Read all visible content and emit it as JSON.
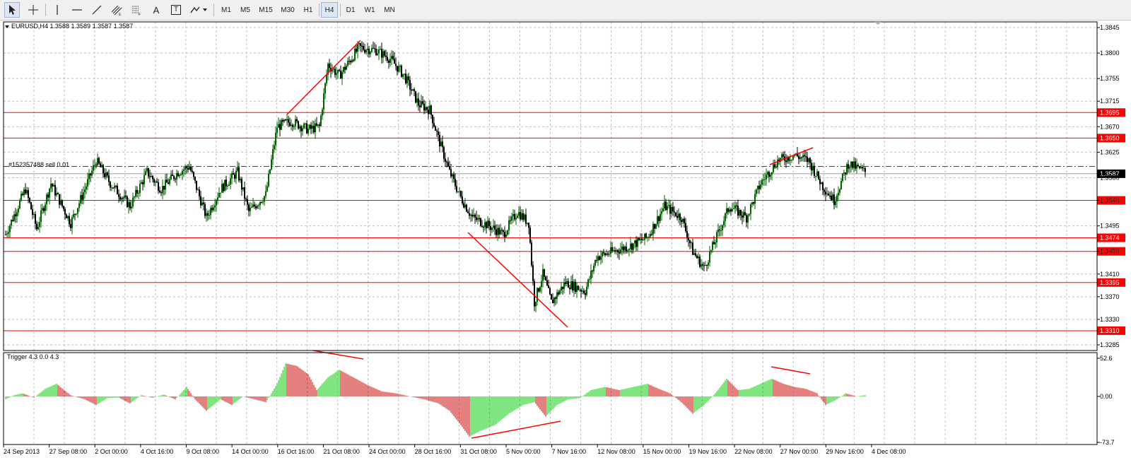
{
  "toolbar": {
    "tools": [
      {
        "name": "cursor-tool",
        "icon": "cursor-icon",
        "selected": true
      },
      {
        "name": "crosshair-tool",
        "icon": "crosshair-icon",
        "selected": false
      },
      {
        "name": "vertical-line-tool",
        "icon": "vertical-line-icon",
        "selected": false
      },
      {
        "name": "horizontal-line-tool",
        "icon": "horizontal-line-icon",
        "selected": false
      },
      {
        "name": "trendline-tool",
        "icon": "trendline-icon",
        "selected": false
      },
      {
        "name": "equidistant-channel-tool",
        "icon": "channel-icon",
        "selected": false
      },
      {
        "name": "fibonacci-tool",
        "icon": "fibonacci-icon",
        "selected": false
      },
      {
        "name": "text-tool",
        "icon": "text-icon",
        "label": "A",
        "selected": false
      },
      {
        "name": "text-label-tool",
        "icon": "text-label-icon",
        "label": "T",
        "selected": false
      },
      {
        "name": "arrows-tool",
        "icon": "arrows-icon",
        "selected": false
      }
    ],
    "timeframes": [
      "M1",
      "M5",
      "M15",
      "M30",
      "H1",
      "H4",
      "D1",
      "W1",
      "MN"
    ],
    "active_timeframe": "H4"
  },
  "chart": {
    "header": "EURUSD,H4  1.3588 1.3589 1.3587 1.3587",
    "order_label": "#152357488 sell 0.01",
    "indicator_label": "Trigger 4.3 0.0 4.3",
    "price_ticks": [
      "1.3845",
      "1.3800",
      "1.3755",
      "1.3715",
      "1.3670",
      "1.3625",
      "1.3580",
      "1.3540",
      "1.3495",
      "1.3450",
      "1.3410",
      "1.3370",
      "1.3330",
      "1.3285"
    ],
    "indicator_ticks": [
      "52.6",
      "0.00",
      "-73.7"
    ],
    "time_ticks": [
      "24 Sep 2013",
      "27 Sep 08:00",
      "2 Oct 00:00",
      "4 Oct 16:00",
      "9 Oct 08:00",
      "14 Oct 00:00",
      "16 Oct 16:00",
      "21 Oct 08:00",
      "24 Oct 00:00",
      "28 Oct 16:00",
      "31 Oct 08:00",
      "5 Nov 00:00",
      "7 Nov 16:00",
      "12 Nov 08:00",
      "15 Nov 00:00",
      "19 Nov 16:00",
      "22 Nov 08:00",
      "27 Nov 00:00",
      "29 Nov 16:00",
      "4 Dec 08:00"
    ],
    "levels": [
      {
        "price": 1.3695,
        "label": "1.3695"
      },
      {
        "price": 1.365,
        "label": "1.3650"
      },
      {
        "price": 1.354,
        "label": "1.3540"
      },
      {
        "price": 1.3474,
        "label": "1.3474"
      },
      {
        "price": 1.345,
        "label": "1.3450"
      },
      {
        "price": 1.3395,
        "label": "1.3395"
      },
      {
        "price": 1.331,
        "label": "1.3310"
      }
    ],
    "current_price": {
      "price": 1.3587,
      "label": "1.3587"
    },
    "order_price": 1.36,
    "colors": {
      "level": "#ff0000",
      "bull": "#006400",
      "bear": "#000000",
      "up_hist": "#00c800",
      "down_hist": "#c80000",
      "grid": "#c0c0c0",
      "order": "#008000",
      "trendline": "#ff0000"
    }
  },
  "chart_data": {
    "type": "candlestick",
    "symbol": "EURUSD",
    "timeframe": "H4",
    "ylim": [
      1.3275,
      1.3855
    ],
    "anchors": [
      [
        0,
        1.348
      ],
      [
        14,
        1.356
      ],
      [
        22,
        1.349
      ],
      [
        32,
        1.357
      ],
      [
        46,
        1.35
      ],
      [
        56,
        1.356
      ],
      [
        64,
        1.361
      ],
      [
        74,
        1.357
      ],
      [
        88,
        1.353
      ],
      [
        100,
        1.359
      ],
      [
        110,
        1.356
      ],
      [
        122,
        1.359
      ],
      [
        130,
        1.36
      ],
      [
        142,
        1.351
      ],
      [
        152,
        1.356
      ],
      [
        164,
        1.359
      ],
      [
        172,
        1.352
      ],
      [
        184,
        1.355
      ],
      [
        192,
        1.367
      ],
      [
        202,
        1.368
      ],
      [
        214,
        1.3665
      ],
      [
        222,
        1.367
      ],
      [
        228,
        1.378
      ],
      [
        236,
        1.376
      ],
      [
        250,
        1.381
      ],
      [
        262,
        1.3805
      ],
      [
        272,
        1.379
      ],
      [
        282,
        1.376
      ],
      [
        292,
        1.371
      ],
      [
        300,
        1.37
      ],
      [
        306,
        1.365
      ],
      [
        314,
        1.359
      ],
      [
        322,
        1.3545
      ],
      [
        330,
        1.351
      ],
      [
        342,
        1.3495
      ],
      [
        352,
        1.348
      ],
      [
        362,
        1.352
      ],
      [
        370,
        1.35
      ],
      [
        374,
        1.336
      ],
      [
        380,
        1.341
      ],
      [
        386,
        1.336
      ],
      [
        396,
        1.3395
      ],
      [
        410,
        1.338
      ],
      [
        418,
        1.344
      ],
      [
        430,
        1.345
      ],
      [
        442,
        1.346
      ],
      [
        454,
        1.3475
      ],
      [
        466,
        1.353
      ],
      [
        478,
        1.351
      ],
      [
        486,
        1.345
      ],
      [
        494,
        1.342
      ],
      [
        502,
        1.347
      ],
      [
        512,
        1.353
      ],
      [
        524,
        1.351
      ],
      [
        534,
        1.357
      ],
      [
        546,
        1.361
      ],
      [
        558,
        1.362
      ],
      [
        568,
        1.361
      ],
      [
        578,
        1.3565
      ],
      [
        586,
        1.354
      ],
      [
        596,
        1.3605
      ],
      [
        608,
        1.359
      ]
    ],
    "indicator_anchors": [
      [
        0,
        -5
      ],
      [
        6,
        2
      ],
      [
        12,
        5
      ],
      [
        20,
        -2
      ],
      [
        28,
        12
      ],
      [
        36,
        20
      ],
      [
        46,
        2
      ],
      [
        56,
        -5
      ],
      [
        64,
        -15
      ],
      [
        72,
        -3
      ],
      [
        80,
        -2
      ],
      [
        88,
        -12
      ],
      [
        96,
        2
      ],
      [
        104,
        -2
      ],
      [
        112,
        3
      ],
      [
        120,
        -5
      ],
      [
        128,
        15
      ],
      [
        134,
        -5
      ],
      [
        142,
        -25
      ],
      [
        152,
        -5
      ],
      [
        160,
        -15
      ],
      [
        168,
        0
      ],
      [
        176,
        -5
      ],
      [
        184,
        -10
      ],
      [
        192,
        20
      ],
      [
        198,
        52
      ],
      [
        206,
        48
      ],
      [
        214,
        35
      ],
      [
        220,
        10
      ],
      [
        228,
        30
      ],
      [
        236,
        42
      ],
      [
        246,
        30
      ],
      [
        256,
        18
      ],
      [
        266,
        8
      ],
      [
        276,
        5
      ],
      [
        286,
        0
      ],
      [
        296,
        -5
      ],
      [
        306,
        -12
      ],
      [
        314,
        -25
      ],
      [
        322,
        -50
      ],
      [
        328,
        -70
      ],
      [
        336,
        -60
      ],
      [
        346,
        -50
      ],
      [
        356,
        -30
      ],
      [
        366,
        -15
      ],
      [
        374,
        -10
      ],
      [
        382,
        -35
      ],
      [
        390,
        -15
      ],
      [
        398,
        -5
      ],
      [
        406,
        -3
      ],
      [
        414,
        10
      ],
      [
        424,
        15
      ],
      [
        434,
        10
      ],
      [
        444,
        15
      ],
      [
        454,
        20
      ],
      [
        462,
        12
      ],
      [
        470,
        5
      ],
      [
        478,
        -10
      ],
      [
        486,
        -30
      ],
      [
        494,
        -15
      ],
      [
        502,
        5
      ],
      [
        510,
        28
      ],
      [
        518,
        10
      ],
      [
        526,
        12
      ],
      [
        534,
        20
      ],
      [
        542,
        28
      ],
      [
        550,
        20
      ],
      [
        558,
        15
      ],
      [
        566,
        12
      ],
      [
        574,
        5
      ],
      [
        580,
        -15
      ],
      [
        588,
        -5
      ],
      [
        594,
        5
      ],
      [
        602,
        0
      ],
      [
        608,
        2
      ]
    ]
  }
}
